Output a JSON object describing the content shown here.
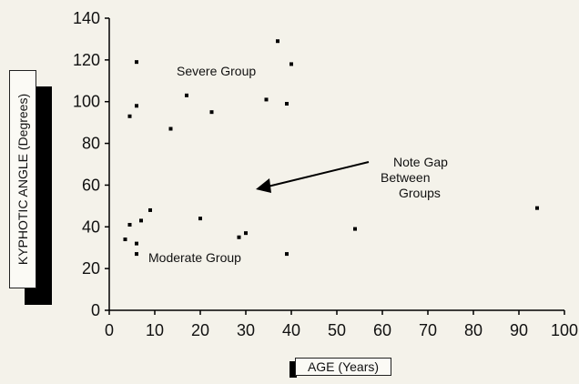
{
  "chart_data": {
    "type": "scatter",
    "xlabel": "AGE (Years)",
    "ylabel": "KYPHOTIC ANGLE (Degrees)",
    "xlim": [
      0,
      100
    ],
    "ylim": [
      0,
      140
    ],
    "xticks": [
      0,
      10,
      20,
      30,
      40,
      50,
      60,
      70,
      80,
      90,
      100
    ],
    "yticks": [
      0,
      20,
      40,
      60,
      80,
      100,
      120,
      140
    ],
    "grid": false,
    "points": [
      {
        "x": 6,
        "y": 119
      },
      {
        "x": 37,
        "y": 129
      },
      {
        "x": 40,
        "y": 118
      },
      {
        "x": 4.5,
        "y": 93
      },
      {
        "x": 6,
        "y": 98
      },
      {
        "x": 17,
        "y": 103
      },
      {
        "x": 22.5,
        "y": 95
      },
      {
        "x": 13.5,
        "y": 87
      },
      {
        "x": 34.5,
        "y": 101
      },
      {
        "x": 39,
        "y": 99
      },
      {
        "x": 4.5,
        "y": 41
      },
      {
        "x": 7,
        "y": 43
      },
      {
        "x": 9,
        "y": 48
      },
      {
        "x": 3.5,
        "y": 34
      },
      {
        "x": 6,
        "y": 32
      },
      {
        "x": 6,
        "y": 27
      },
      {
        "x": 20,
        "y": 44
      },
      {
        "x": 28.5,
        "y": 35
      },
      {
        "x": 30,
        "y": 37
      },
      {
        "x": 39,
        "y": 27
      },
      {
        "x": 54,
        "y": 39
      },
      {
        "x": 94,
        "y": 49
      }
    ],
    "annotations": {
      "severe": "Severe Group",
      "moderate": "Moderate Group",
      "note_line1": "Note Gap",
      "note_line2": "Between",
      "note_line3": "Groups"
    }
  }
}
